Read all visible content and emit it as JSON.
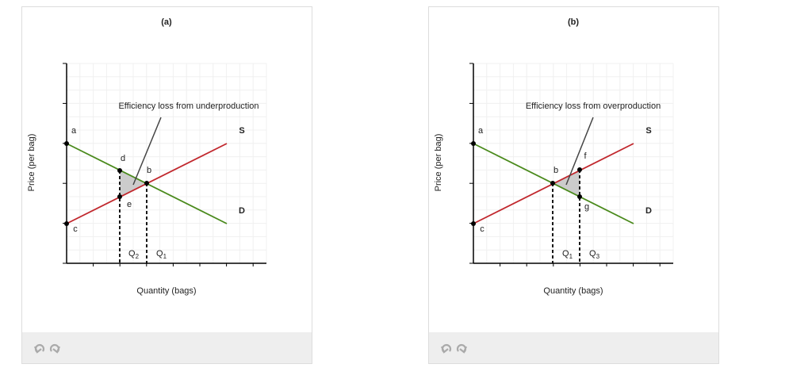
{
  "panels": [
    {
      "title": "(a)",
      "y_axis_label": "Price (per bag)",
      "x_axis_label": "Quantity (bags)",
      "annotation": "Efficiency loss from underproduction",
      "curve_labels": {
        "supply": "S",
        "demand": "D"
      },
      "point_labels": {
        "a": "a",
        "b": "b",
        "c": "c",
        "d": "d",
        "e": "e"
      },
      "quantity_labels": [
        {
          "base": "Q",
          "sub": "2"
        },
        {
          "base": "Q",
          "sub": "1"
        }
      ]
    },
    {
      "title": "(b)",
      "y_axis_label": "Price (per bag)",
      "x_axis_label": "Quantity (bags)",
      "annotation": "Efficiency loss from overproduction",
      "curve_labels": {
        "supply": "S",
        "demand": "D"
      },
      "point_labels": {
        "a": "a",
        "b": "b",
        "c": "c",
        "f": "f",
        "g": "g"
      },
      "quantity_labels": [
        {
          "base": "Q",
          "sub": "1"
        },
        {
          "base": "Q",
          "sub": "3"
        }
      ]
    }
  ]
}
